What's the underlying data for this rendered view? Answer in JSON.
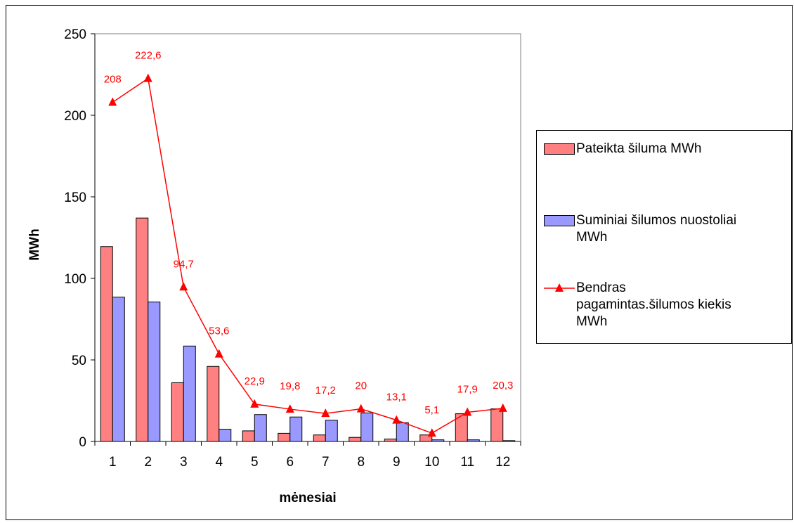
{
  "chart_data": {
    "type": "bar",
    "ylabel": "MWh",
    "xlabel": "mėnesiai",
    "ylim": [
      0,
      250
    ],
    "yticks": [
      0,
      50,
      100,
      150,
      200,
      250
    ],
    "categories": [
      "1",
      "2",
      "3",
      "4",
      "5",
      "6",
      "7",
      "8",
      "9",
      "10",
      "11",
      "12"
    ],
    "grid": false,
    "legend_position": "right",
    "series": [
      {
        "name": "Pateikta šiluma MWh",
        "kind": "bar",
        "color": "#ff8080",
        "values": [
          119.5,
          137,
          36,
          46,
          6.5,
          5,
          4,
          2.5,
          1.5,
          4,
          17,
          20
        ]
      },
      {
        "name": "Suminiai šilumos nuostoliai MWh",
        "kind": "bar",
        "color": "#9999ff",
        "values": [
          88.5,
          85.5,
          58.5,
          7.5,
          16.5,
          15,
          13,
          17.5,
          11.5,
          1,
          1,
          0.5
        ]
      },
      {
        "name": "Bendras pagamintas.šilumos kiekis MWh",
        "kind": "line",
        "color": "#ff0000",
        "marker": "triangle",
        "values": [
          208,
          222.6,
          94.7,
          53.6,
          22.9,
          19.8,
          17.2,
          20,
          13.1,
          5.1,
          17.9,
          20.3
        ],
        "data_labels": [
          "208",
          "222,6",
          "94,7",
          "53,6",
          "22,9",
          "19,8",
          "17,2",
          "20",
          "13,1",
          "5,1",
          "17,9",
          "20,3"
        ]
      }
    ]
  },
  "legend": {
    "item1_label": "Pateikta šiluma MWh",
    "item2_label_line1": "Suminiai šilumos nuostoliai",
    "item2_label_line2": "MWh",
    "item3_label_line1": "Bendras",
    "item3_label_line2": "pagamintas.šilumos kiekis",
    "item3_label_line3": "MWh"
  }
}
